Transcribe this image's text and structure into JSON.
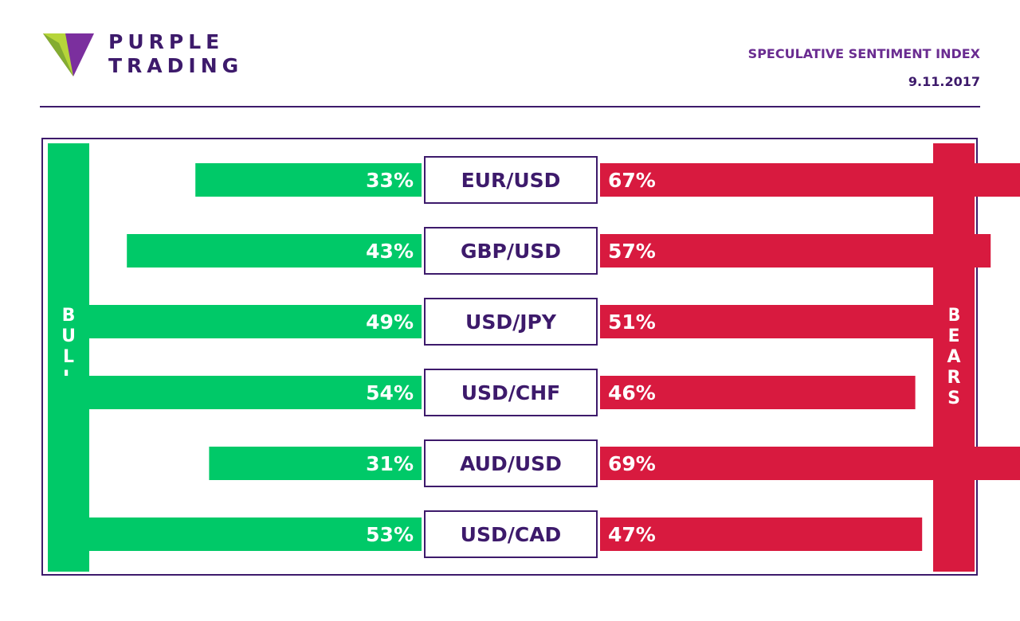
{
  "logo": {
    "line1": "PURPLE",
    "line2": "TRADING",
    "colors": {
      "purple": "#7b2f9e",
      "green": "#b6d53a",
      "dark": "#3d1a6b"
    }
  },
  "header": {
    "title": "SPECULATIVE SENTIMENT INDEX",
    "date": "9.11.2017"
  },
  "sides": {
    "bulls": "B\nU\nL\nL\nS",
    "bears": "B\nE\nA\nR\nS"
  },
  "colors": {
    "bulls": "#00c968",
    "bears": "#d81a3f",
    "accent": "#3d1a6b"
  },
  "chart_data": {
    "type": "bar",
    "categories": [
      "EUR/USD",
      "GBP/USD",
      "USD/JPY",
      "USD/CHF",
      "AUD/USD",
      "USD/CAD"
    ],
    "series": [
      {
        "name": "BULLS",
        "values": [
          33,
          43,
          49,
          54,
          31,
          53
        ]
      },
      {
        "name": "BEARS",
        "values": [
          67,
          57,
          51,
          46,
          69,
          47
        ]
      }
    ],
    "value_suffix": "%",
    "xlim": [
      0,
      100
    ],
    "grid": false
  }
}
